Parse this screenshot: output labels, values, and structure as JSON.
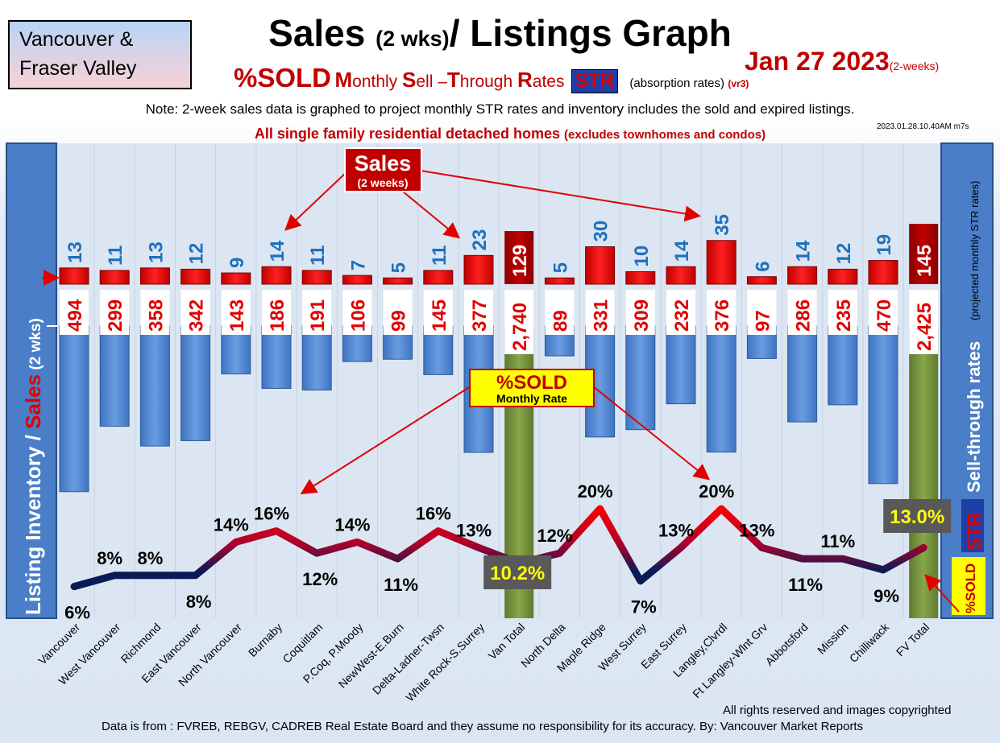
{
  "region_box": {
    "line1": "Vancouver &",
    "line2": "Fraser Valley"
  },
  "title": {
    "main": "Sales",
    "small": "(2 wks)",
    "rest": "/ Listings Graph"
  },
  "subtitle": {
    "sold": "%SOLD",
    "monthly_words": [
      {
        "cap": "M",
        "rest": "onthly "
      },
      {
        "cap": "S",
        "rest": "ell –"
      },
      {
        "cap": "T",
        "rest": "hrough "
      },
      {
        "cap": "R",
        "rest": "ates"
      }
    ],
    "str": "STR",
    "absorption": "(absorption rates)",
    "version": "(vr3)"
  },
  "date": {
    "main": "Jan 27  2023",
    "suffix": "(2-weeks)"
  },
  "note": "Note: 2-week sales data is graphed to project monthly STR rates and inventory includes the sold and expired listings.",
  "scope": {
    "main": "All single family residential detached homes",
    "paren": "(excludes townhomes and condos)"
  },
  "stamp": "2023.01.28.10.40AM m7s",
  "left_axis": {
    "part1": "Listing Inventory / ",
    "sales": "Sales",
    "part2": " (2  wks)"
  },
  "right_axis": {
    "main": "Sell-through rates",
    "sub": "(projected monthly STR rates)",
    "str": "STR",
    "sold": "%SOLD"
  },
  "callouts": {
    "sales_title": "Sales",
    "sales_sub": "(2 weeks)",
    "sold_title": "%SOLD",
    "sold_sub": "Monthly Rate"
  },
  "footer": {
    "rights": "All rights reserved and  images copyrighted",
    "source": "Data is from : FVREB, REBGV, CADREB Real Estate Board and they assume no responsibility for its accuracy. By: Vancouver Market Reports"
  },
  "colors": {
    "sales": "#e00000",
    "inventory": "#4f86d0",
    "total": "#76923c",
    "sales_label": "#1f6fbf",
    "title_red": "#c00000"
  },
  "chart_data": {
    "type": "bar",
    "categories": [
      "Vancouver",
      "West Vancouver",
      "Richmond",
      "East Vancouver",
      "North Vancouver",
      "Burnaby",
      "Coquitlam",
      "P.Coq, P.Moody",
      "NewWest-E.Burn",
      "Delta-Ladner-Twsn",
      "White Rock-S.Surrey",
      "Van Total",
      "North Delta",
      "Maple Ridge",
      "West Surrey",
      "East Surrey",
      "Langley,Clvrdl",
      "Ft Langley-Wlnt Grv",
      "Abbotsford",
      "Mission",
      "Chilliwack",
      "FV Total"
    ],
    "totals": [
      false,
      false,
      false,
      false,
      false,
      false,
      false,
      false,
      false,
      false,
      false,
      true,
      false,
      false,
      false,
      false,
      false,
      false,
      false,
      false,
      false,
      true
    ],
    "series": [
      {
        "name": "Sales",
        "unit": "2 weeks",
        "values": [
          13,
          11,
          13,
          12,
          9,
          14,
          11,
          7,
          5,
          11,
          23,
          129,
          5,
          30,
          10,
          14,
          35,
          6,
          14,
          12,
          19,
          145
        ],
        "labels": [
          "13",
          "11",
          "13",
          "12",
          "9",
          "14",
          "11",
          "7",
          "5",
          "11",
          "23",
          "129",
          "5",
          "30",
          "10",
          "14",
          "35",
          "6",
          "14",
          "12",
          "19",
          "145"
        ]
      },
      {
        "name": "Listing Inventory",
        "values": [
          494,
          299,
          358,
          342,
          143,
          186,
          191,
          106,
          99,
          145,
          377,
          2740,
          89,
          331,
          309,
          232,
          376,
          97,
          286,
          235,
          470,
          2425
        ],
        "labels": [
          "494",
          "299",
          "358",
          "342",
          "143",
          "186",
          "191",
          "106",
          "99",
          "145",
          "377",
          "2,740",
          "89",
          "331",
          "309",
          "232",
          "376",
          "97",
          "286",
          "235",
          "470",
          "2,425"
        ]
      },
      {
        "name": "%SOLD Monthly Rate",
        "values": [
          6,
          8,
          8,
          8,
          14,
          16,
          12,
          14,
          11,
          16,
          13,
          10.2,
          12,
          20,
          7,
          13,
          20,
          13,
          11,
          11,
          9,
          13.0
        ],
        "labels": [
          "6%",
          "8%",
          "8%",
          "8%",
          "14%",
          "16%",
          "12%",
          "14%",
          "11%",
          "16%",
          "13%",
          "10.2%",
          "12%",
          "20%",
          "7%",
          "13%",
          "20%",
          "13%",
          "11%",
          "11%",
          "9%",
          "13.0%"
        ]
      }
    ]
  }
}
